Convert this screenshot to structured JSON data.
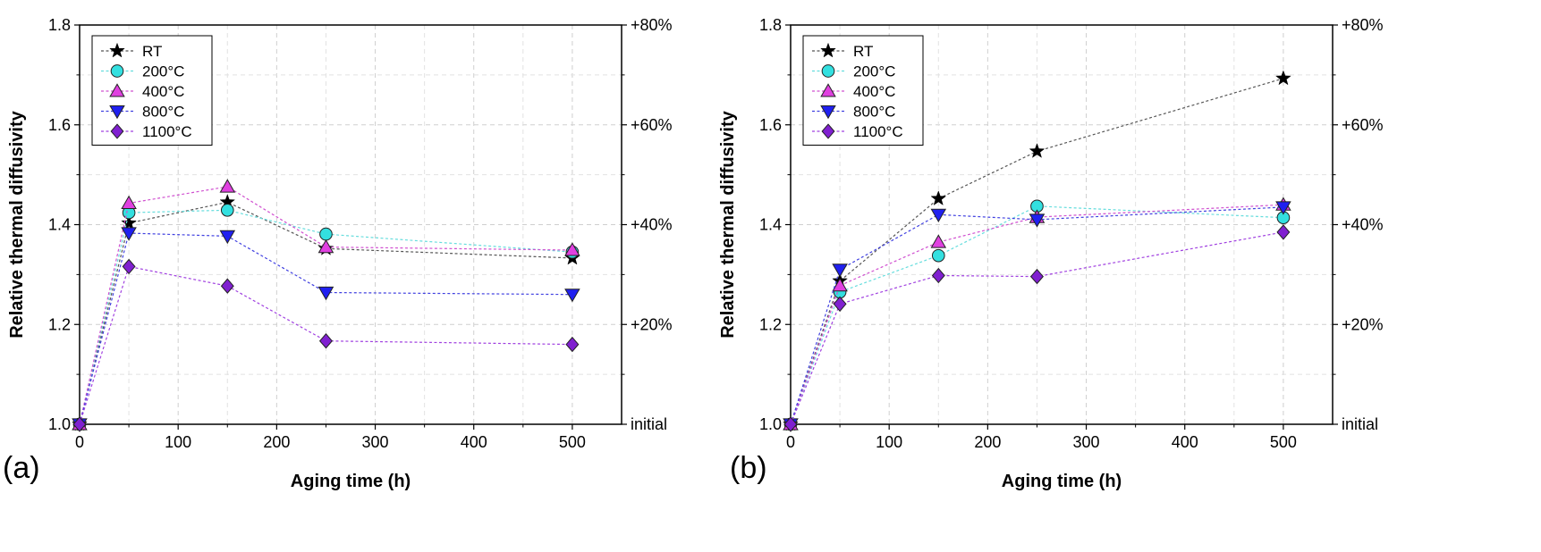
{
  "chart_data": [
    {
      "type": "line",
      "panel_label": "(a)",
      "xlabel": "Aging time (h)",
      "ylabel": "Relative thermal diffusivity",
      "xlim": [
        0,
        550
      ],
      "ylim": [
        1.0,
        1.8
      ],
      "x_ticks": [
        0,
        100,
        200,
        300,
        400,
        500
      ],
      "y_ticks": [
        1.0,
        1.2,
        1.4,
        1.6,
        1.8
      ],
      "y_tick_labels": [
        "1.0",
        "1.2",
        "1.4",
        "1.6",
        "1.8"
      ],
      "right_axis_labels": [
        "initial",
        "+20%",
        "+40%",
        "+60%",
        "+80%"
      ],
      "grid": true,
      "legend_position": "top-left",
      "x": [
        0,
        50,
        150,
        250,
        500
      ],
      "series": [
        {
          "name": "RT",
          "marker": "star",
          "color": "#000000",
          "line_color": "#555555",
          "values": [
            1.0,
            1.403,
            1.445,
            1.352,
            1.333
          ]
        },
        {
          "name": "200°C",
          "marker": "circle",
          "color": "#33e0e0",
          "line_color": "#66dddd",
          "values": [
            1.0,
            1.424,
            1.429,
            1.381,
            1.345
          ]
        },
        {
          "name": "400°C",
          "marker": "triangle-up",
          "color": "#e040e0",
          "line_color": "#d050d0",
          "values": [
            1.0,
            1.443,
            1.476,
            1.355,
            1.349
          ]
        },
        {
          "name": "800°C",
          "marker": "triangle-down",
          "color": "#2020f0",
          "line_color": "#4040e0",
          "values": [
            1.0,
            1.383,
            1.377,
            1.264,
            1.26
          ]
        },
        {
          "name": "1100°C",
          "marker": "diamond",
          "color": "#8020d0",
          "line_color": "#a040e0",
          "values": [
            1.0,
            1.316,
            1.277,
            1.167,
            1.16
          ]
        }
      ]
    },
    {
      "type": "line",
      "panel_label": "(b)",
      "xlabel": "Aging time (h)",
      "ylabel": "Relative thermal diffusivity",
      "xlim": [
        0,
        550
      ],
      "ylim": [
        1.0,
        1.8
      ],
      "x_ticks": [
        0,
        100,
        200,
        300,
        400,
        500
      ],
      "y_ticks": [
        1.0,
        1.2,
        1.4,
        1.6,
        1.8
      ],
      "y_tick_labels": [
        "1.0",
        "1.2",
        "1.4",
        "1.6",
        "1.8"
      ],
      "right_axis_labels": [
        "initial",
        "+20%",
        "+40%",
        "+60%",
        "+80%"
      ],
      "grid": true,
      "legend_position": "top-left",
      "x": [
        0,
        50,
        150,
        250,
        500
      ],
      "series": [
        {
          "name": "RT",
          "marker": "star",
          "color": "#000000",
          "line_color": "#555555",
          "values": [
            1.0,
            1.287,
            1.452,
            1.547,
            1.693
          ]
        },
        {
          "name": "200°C",
          "marker": "circle",
          "color": "#33e0e0",
          "line_color": "#66dddd",
          "values": [
            1.0,
            1.265,
            1.338,
            1.437,
            1.414
          ]
        },
        {
          "name": "400°C",
          "marker": "triangle-up",
          "color": "#e040e0",
          "line_color": "#d050d0",
          "values": [
            1.0,
            1.278,
            1.365,
            1.415,
            1.44
          ]
        },
        {
          "name": "800°C",
          "marker": "triangle-down",
          "color": "#2020f0",
          "line_color": "#4040e0",
          "values": [
            1.0,
            1.31,
            1.42,
            1.41,
            1.435
          ]
        },
        {
          "name": "1100°C",
          "marker": "diamond",
          "color": "#8020d0",
          "line_color": "#a040e0",
          "values": [
            1.0,
            1.241,
            1.298,
            1.296,
            1.385
          ]
        }
      ]
    }
  ]
}
